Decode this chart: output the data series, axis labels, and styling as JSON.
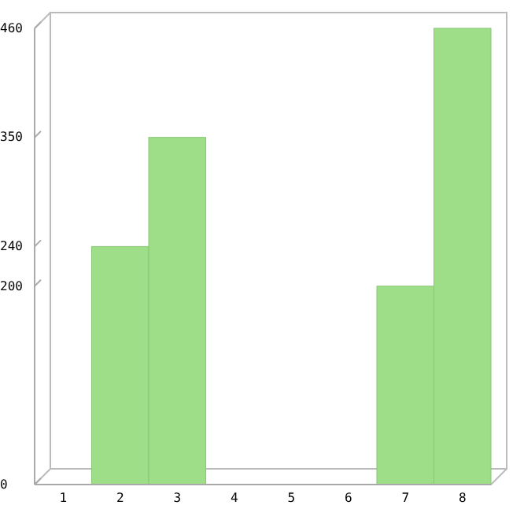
{
  "chart_data": {
    "type": "bar",
    "categories": [
      "1",
      "2",
      "3",
      "4",
      "5",
      "6",
      "7",
      "8"
    ],
    "values": [
      0,
      240,
      350,
      0,
      0,
      0,
      200,
      460
    ],
    "color": "#9ede88",
    "ylim": [
      0,
      460
    ],
    "yticks": [
      0,
      200,
      240,
      350,
      460
    ],
    "grid": false
  }
}
